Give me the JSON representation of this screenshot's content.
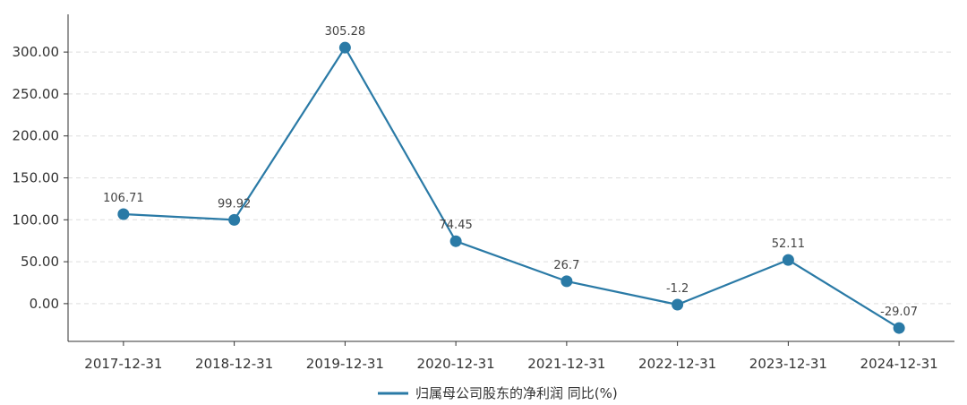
{
  "chart_data": {
    "type": "line",
    "title": "",
    "xlabel": "",
    "ylabel": "",
    "categories": [
      "2017-12-31",
      "2018-12-31",
      "2019-12-31",
      "2020-12-31",
      "2021-12-31",
      "2022-12-31",
      "2023-12-31",
      "2024-12-31"
    ],
    "series": [
      {
        "name": "归属母公司股东的净利润 同比(%)",
        "values": [
          106.71,
          99.92,
          305.28,
          74.45,
          26.7,
          -1.2,
          52.11,
          -29.07
        ],
        "labels": [
          "106.71",
          "99.92",
          "305.28",
          "74.45",
          "26.7",
          "-1.2",
          "52.11",
          "-29.07"
        ],
        "color": "#2a7aa6"
      }
    ],
    "yticks": [
      0,
      50,
      100,
      150,
      200,
      250,
      300
    ],
    "ytick_labels": [
      "0.00",
      "50.00",
      "100.00",
      "150.00",
      "200.00",
      "250.00",
      "300.00"
    ],
    "ylim": [
      -45,
      345
    ],
    "grid": true,
    "legend_position": "bottom-center"
  }
}
